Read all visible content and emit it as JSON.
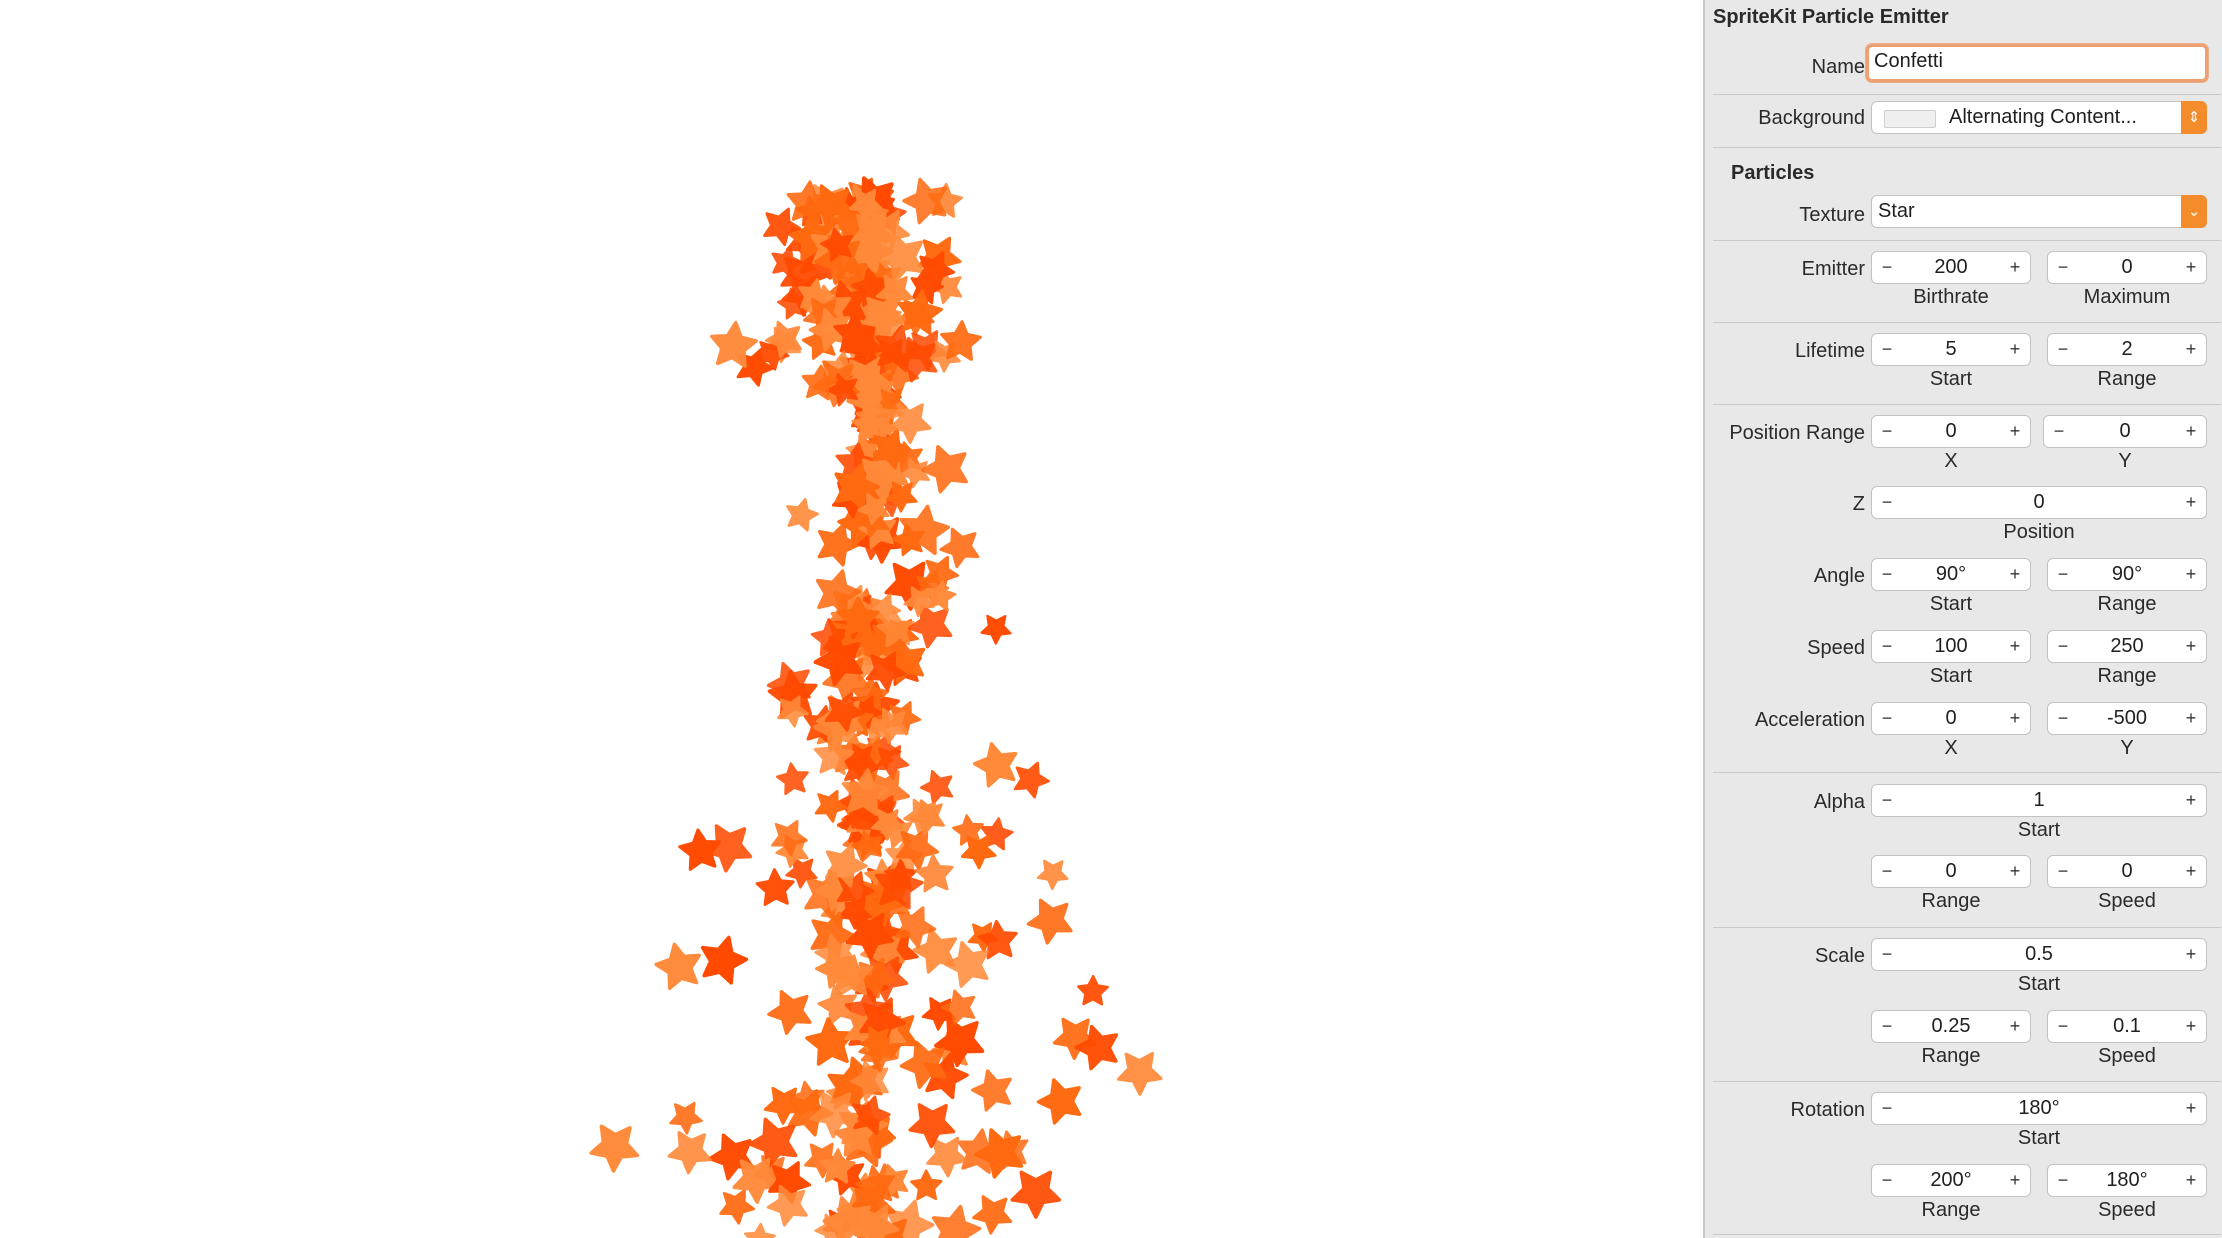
{
  "inspector": {
    "title": "SpriteKit Particle Emitter",
    "name": {
      "label": "Name",
      "value": "Confetti"
    },
    "background": {
      "label": "Background",
      "value": "Alternating Content..."
    },
    "particles_heading": "Particles",
    "texture": {
      "label": "Texture",
      "value": "Star"
    },
    "emitter": {
      "label": "Emitter",
      "birthrate": "200",
      "birthrate_label": "Birthrate",
      "maximum": "0",
      "maximum_label": "Maximum"
    },
    "lifetime": {
      "label": "Lifetime",
      "start": "5",
      "start_label": "Start",
      "range": "2",
      "range_label": "Range"
    },
    "position_range": {
      "label": "Position Range",
      "x": "0",
      "x_label": "X",
      "y": "0",
      "y_label": "Y"
    },
    "z": {
      "label": "Z",
      "position": "0",
      "position_label": "Position"
    },
    "angle": {
      "label": "Angle",
      "start": "90°",
      "start_label": "Start",
      "range": "90°",
      "range_label": "Range"
    },
    "speed": {
      "label": "Speed",
      "start": "100",
      "start_label": "Start",
      "range": "250",
      "range_label": "Range"
    },
    "acceleration": {
      "label": "Acceleration",
      "x": "0",
      "x_label": "X",
      "y": "-500",
      "y_label": "Y"
    },
    "alpha": {
      "label": "Alpha",
      "start": "1",
      "start_label": "Start",
      "range": "0",
      "range_label": "Range",
      "speed": "0",
      "speed_label": "Speed"
    },
    "scale": {
      "label": "Scale",
      "start": "0.5",
      "start_label": "Start",
      "range": "0.25",
      "range_label": "Range",
      "speed": "0.1",
      "speed_label": "Speed"
    },
    "rotation": {
      "label": "Rotation",
      "start": "180°",
      "start_label": "Start",
      "range": "200°",
      "range_label": "Range",
      "speed": "180°",
      "speed_label": "Speed"
    },
    "stepper_minus": "−",
    "stepper_plus": "+",
    "popup_arrows": "⇕",
    "dropdown_arrow": "⌄"
  },
  "canvas": {
    "particle_icon": "star-icon",
    "particle_colors": [
      "#ff4a00",
      "#ff6a10",
      "#ff8a3a"
    ]
  }
}
